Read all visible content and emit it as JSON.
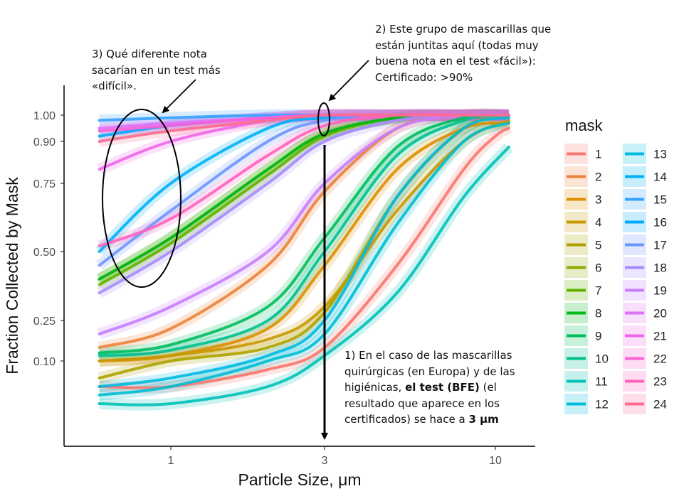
{
  "chart_data": {
    "type": "line",
    "xlabel": "Particle Size, μm",
    "ylabel": "Fraction Collected by Mask",
    "x_ticks": [
      {
        "value": 1,
        "label": "1"
      },
      {
        "value": 3,
        "label": "3"
      },
      {
        "value": 10,
        "label": "10"
      }
    ],
    "y_ticks": [
      {
        "value": 0.1,
        "label": "0.10"
      },
      {
        "value": 0.25,
        "label": "0.25"
      },
      {
        "value": 0.5,
        "label": "0.50"
      },
      {
        "value": 0.75,
        "label": "0.75"
      },
      {
        "value": 0.9,
        "label": "0.90"
      },
      {
        "value": 1.0,
        "label": "1.00"
      }
    ],
    "x_scale": "log",
    "y_scale": "logit-like",
    "xlim": [
      0.55,
      12
    ],
    "ylim": [
      0.0,
      1.0
    ],
    "grid": false,
    "legend": {
      "title": "mask",
      "placement": "right"
    },
    "series": [
      {
        "name": "1",
        "color": "#F8766D",
        "x": [
          0.6,
          1,
          2,
          3,
          5,
          8,
          10,
          11
        ],
        "y": [
          0.07,
          0.07,
          0.09,
          0.15,
          0.45,
          0.8,
          0.92,
          0.95
        ]
      },
      {
        "name": "2",
        "color": "#EC8239",
        "x": [
          0.6,
          1,
          2,
          3,
          5,
          8,
          11
        ],
        "y": [
          0.15,
          0.22,
          0.45,
          0.72,
          0.95,
          1.0,
          1.0
        ]
      },
      {
        "name": "3",
        "color": "#DB8E00",
        "x": [
          0.6,
          1,
          2,
          3,
          5,
          8,
          11
        ],
        "y": [
          0.1,
          0.12,
          0.22,
          0.45,
          0.8,
          0.95,
          0.97
        ]
      },
      {
        "name": "4",
        "color": "#C79800",
        "x": [
          0.6,
          1,
          2,
          3,
          5,
          8,
          11
        ],
        "y": [
          0.1,
          0.12,
          0.18,
          0.3,
          0.65,
          0.9,
          0.98
        ]
      },
      {
        "name": "5",
        "color": "#AEA200",
        "x": [
          0.6,
          1,
          2,
          3,
          5,
          8,
          11
        ],
        "y": [
          0.08,
          0.1,
          0.15,
          0.28,
          0.7,
          0.95,
          1.0
        ]
      },
      {
        "name": "6",
        "color": "#8FAA00",
        "x": [
          0.6,
          1,
          2,
          3,
          5,
          8,
          11
        ],
        "y": [
          0.4,
          0.55,
          0.8,
          0.93,
          0.99,
          1.0,
          1.0
        ]
      },
      {
        "name": "7",
        "color": "#64B200",
        "x": [
          0.6,
          1,
          2,
          3,
          5,
          8,
          11
        ],
        "y": [
          0.38,
          0.53,
          0.78,
          0.92,
          0.99,
          1.0,
          1.0
        ]
      },
      {
        "name": "8",
        "color": "#00B81B",
        "x": [
          0.6,
          1,
          2,
          3,
          5,
          8,
          11
        ],
        "y": [
          0.4,
          0.55,
          0.8,
          0.93,
          0.99,
          1.0,
          1.0
        ]
      },
      {
        "name": "9",
        "color": "#00BD5C",
        "x": [
          0.6,
          1,
          2,
          3,
          5,
          8,
          11
        ],
        "y": [
          0.13,
          0.16,
          0.3,
          0.55,
          0.88,
          0.99,
          1.0
        ]
      },
      {
        "name": "10",
        "color": "#00C08E",
        "x": [
          0.6,
          1,
          2,
          3,
          5,
          8,
          11
        ],
        "y": [
          0.12,
          0.14,
          0.25,
          0.5,
          0.85,
          0.98,
          1.0
        ]
      },
      {
        "name": "11",
        "color": "#00C1B7",
        "x": [
          0.6,
          1,
          2,
          3,
          5,
          8,
          11
        ],
        "y": [
          0.05,
          0.05,
          0.07,
          0.12,
          0.35,
          0.7,
          0.88
        ]
      },
      {
        "name": "12",
        "color": "#00BDD4",
        "x": [
          0.6,
          1,
          2,
          3,
          5,
          8,
          11
        ],
        "y": [
          0.06,
          0.07,
          0.1,
          0.2,
          0.6,
          0.9,
          0.97
        ]
      },
      {
        "name": "13",
        "color": "#00BAE0",
        "x": [
          0.6,
          1,
          2,
          3,
          5,
          8,
          11
        ],
        "y": [
          0.07,
          0.08,
          0.12,
          0.25,
          0.7,
          0.95,
          0.99
        ]
      },
      {
        "name": "14",
        "color": "#00B0F6",
        "x": [
          0.6,
          1,
          2,
          3,
          5,
          8,
          11
        ],
        "y": [
          0.5,
          0.75,
          0.95,
          0.99,
          1.0,
          1.0,
          1.0
        ]
      },
      {
        "name": "15",
        "color": "#35A2FF",
        "x": [
          0.6,
          1,
          2,
          3,
          5,
          8,
          11
        ],
        "y": [
          0.98,
          0.99,
          1.0,
          1.0,
          1.0,
          1.0,
          1.0
        ]
      },
      {
        "name": "16",
        "color": "#00A9FF",
        "x": [
          0.6,
          1,
          2,
          3,
          5,
          8,
          11
        ],
        "y": [
          0.92,
          0.96,
          0.99,
          1.0,
          1.0,
          1.0,
          1.0
        ]
      },
      {
        "name": "17",
        "color": "#6D96FF",
        "x": [
          0.6,
          1,
          2,
          3,
          5,
          8,
          11
        ],
        "y": [
          0.45,
          0.65,
          0.9,
          0.98,
          1.0,
          1.0,
          1.0
        ]
      },
      {
        "name": "18",
        "color": "#A58AFF",
        "x": [
          0.6,
          1,
          2,
          3,
          5,
          8,
          11
        ],
        "y": [
          0.35,
          0.5,
          0.75,
          0.9,
          0.98,
          1.0,
          1.0
        ]
      },
      {
        "name": "19",
        "color": "#C77CFF",
        "x": [
          0.6,
          1,
          2,
          3,
          5,
          8,
          11
        ],
        "y": [
          0.2,
          0.3,
          0.5,
          0.75,
          0.95,
          1.0,
          1.0
        ]
      },
      {
        "name": "20",
        "color": "#DF70F8",
        "x": [
          0.6,
          1,
          2,
          3,
          5,
          8,
          11
        ],
        "y": [
          0.95,
          0.97,
          0.99,
          1.0,
          1.0,
          1.0,
          1.0
        ]
      },
      {
        "name": "21",
        "color": "#F066EA",
        "x": [
          0.6,
          1,
          2,
          3,
          5,
          8,
          11
        ],
        "y": [
          0.8,
          0.9,
          0.98,
          1.0,
          1.0,
          1.0,
          1.0
        ]
      },
      {
        "name": "22",
        "color": "#FB61D7",
        "x": [
          0.6,
          1,
          2,
          3,
          5,
          8,
          11
        ],
        "y": [
          0.94,
          0.96,
          0.99,
          1.0,
          1.0,
          1.0,
          1.0
        ]
      },
      {
        "name": "23",
        "color": "#FF62BC",
        "x": [
          0.6,
          1,
          2,
          3,
          5,
          8,
          11
        ],
        "y": [
          0.52,
          0.62,
          0.85,
          0.96,
          1.0,
          1.0,
          1.0
        ]
      },
      {
        "name": "24",
        "color": "#FF6C91",
        "x": [
          0.6,
          1,
          2,
          3,
          5,
          8,
          11
        ],
        "y": [
          0.9,
          0.94,
          0.98,
          1.0,
          1.0,
          1.0,
          1.0
        ]
      }
    ]
  },
  "annotations": {
    "note1_lines": [
      "1) En el caso de las mascarillas",
      "quirúrgicas (en Europa) y de las",
      "higiénicas, ",
      "el test (BFE)",
      " (el",
      "resultado que aparece en los",
      "certificados) se hace a ",
      "3 μm"
    ],
    "note2_lines": [
      "2) Este grupo de mascarillas que",
      "están juntitas aquí (todas muy",
      "buena nota en el test «fácil»):",
      "Certificado: >90%"
    ],
    "note3_lines": [
      "3) Qué diferente nota",
      "sacarían en un test más",
      "«difícil»."
    ]
  }
}
